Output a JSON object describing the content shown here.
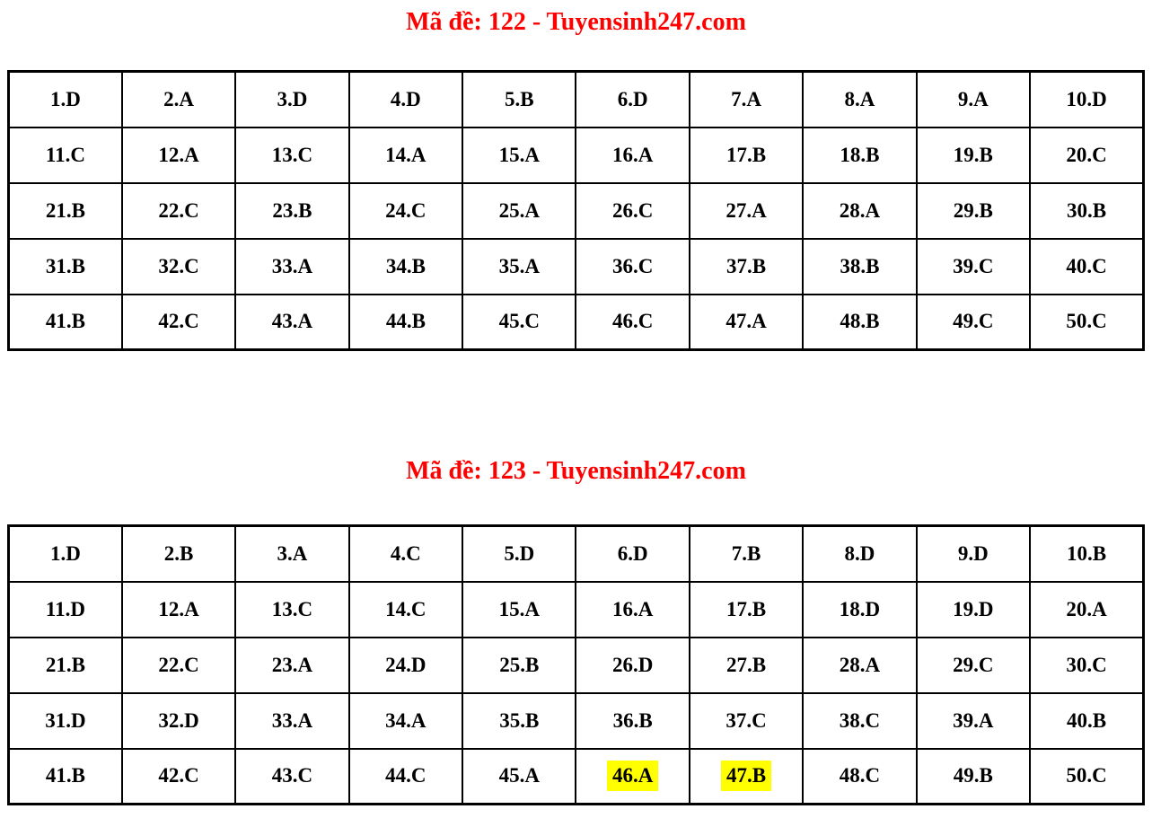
{
  "colors": {
    "title_red": "#ff0000",
    "highlight_yellow": "#ffff00",
    "cell_text": "#000000",
    "table_border": "#000000",
    "background": "#ffffff"
  },
  "sections": [
    {
      "title": "Mã đề: 122 - Tuyensinh247.com",
      "rows": [
        [
          "1.D",
          "2.A",
          "3.D",
          "4.D",
          "5.B",
          "6.D",
          "7.A",
          "8.A",
          "9.A",
          "10.D"
        ],
        [
          "11.C",
          "12.A",
          "13.C",
          "14.A",
          "15.A",
          "16.A",
          "17.B",
          "18.B",
          "19.B",
          "20.C"
        ],
        [
          "21.B",
          "22.C",
          "23.B",
          "24.C",
          "25.A",
          "26.C",
          "27.A",
          "28.A",
          "29.B",
          "30.B"
        ],
        [
          "31.B",
          "32.C",
          "33.A",
          "34.B",
          "35.A",
          "36.C",
          "37.B",
          "38.B",
          "39.C",
          "40.C"
        ],
        [
          "41.B",
          "42.C",
          "43.A",
          "44.B",
          "45.C",
          "46.C",
          "47.A",
          "48.B",
          "49.C",
          "50.C"
        ]
      ],
      "highlights": []
    },
    {
      "title": "Mã đề: 123 - Tuyensinh247.com",
      "rows": [
        [
          "1.D",
          "2.B",
          "3.A",
          "4.C",
          "5.D",
          "6.D",
          "7.B",
          "8.D",
          "9.D",
          "10.B"
        ],
        [
          "11.D",
          "12.A",
          "13.C",
          "14.C",
          "15.A",
          "16.A",
          "17.B",
          "18.D",
          "19.D",
          "20.A"
        ],
        [
          "21.B",
          "22.C",
          "23.A",
          "24.D",
          "25.B",
          "26.D",
          "27.B",
          "28.A",
          "29.C",
          "30.C"
        ],
        [
          "31.D",
          "32.D",
          "33.A",
          "34.A",
          "35.B",
          "36.B",
          "37.C",
          "38.C",
          "39.A",
          "40.B"
        ],
        [
          "41.B",
          "42.C",
          "43.C",
          "44.C",
          "45.A",
          "46.A",
          "47.B",
          "48.C",
          "49.B",
          "50.C"
        ]
      ],
      "highlights": [
        [
          4,
          5
        ],
        [
          4,
          6
        ]
      ]
    }
  ]
}
